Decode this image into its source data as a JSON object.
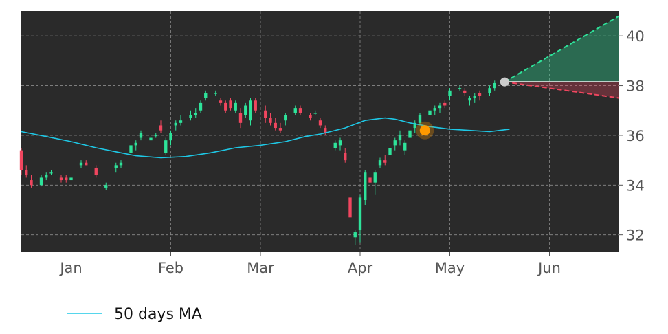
{
  "chart_data": {
    "type": "candlestick",
    "x_ticks": [
      "Jan",
      "Feb",
      "Mar",
      "Apr",
      "May",
      "Jun"
    ],
    "y_ticks": [
      32,
      34,
      36,
      38,
      40
    ],
    "ylim": [
      31.3,
      41.0
    ],
    "grid": true,
    "legend": {
      "placement": "bottom-left",
      "entries": [
        {
          "name": "50 days MA",
          "color": "#1ec8e6"
        }
      ]
    },
    "colors": {
      "up": "#2ee39a",
      "down": "#f0465f",
      "ma": "#1ec8e6",
      "background": "#2a2a2a",
      "grid": "#8a8a8a"
    },
    "ma_50": [
      [
        0,
        36.15
      ],
      [
        5,
        35.95
      ],
      [
        10,
        35.75
      ],
      [
        15,
        35.5
      ],
      [
        20,
        35.3
      ],
      [
        23,
        35.18
      ],
      [
        28,
        35.1
      ],
      [
        33,
        35.15
      ],
      [
        38,
        35.3
      ],
      [
        43,
        35.5
      ],
      [
        48,
        35.6
      ],
      [
        53,
        35.75
      ],
      [
        57,
        35.95
      ],
      [
        60,
        36.05
      ],
      [
        65,
        36.3
      ],
      [
        69,
        36.6
      ],
      [
        73,
        36.7
      ],
      [
        75,
        36.65
      ],
      [
        78,
        36.5
      ],
      [
        82,
        36.35
      ],
      [
        86,
        36.25
      ],
      [
        90,
        36.2
      ],
      [
        94,
        36.15
      ],
      [
        96,
        36.2
      ],
      [
        98,
        36.25
      ]
    ],
    "candles": [
      [
        0,
        35.4,
        35.5,
        34.4,
        34.6
      ],
      [
        1,
        34.6,
        34.8,
        34.3,
        34.4
      ],
      [
        2,
        34.2,
        34.4,
        33.9,
        34.0
      ],
      [
        4,
        34.0,
        34.4,
        33.95,
        34.3
      ],
      [
        5,
        34.3,
        34.5,
        34.2,
        34.4
      ],
      [
        6,
        34.5,
        34.6,
        34.4,
        34.5
      ],
      [
        8,
        34.3,
        34.4,
        34.1,
        34.2
      ],
      [
        9,
        34.3,
        34.4,
        34.1,
        34.2
      ],
      [
        10,
        34.2,
        34.4,
        34.1,
        34.3
      ],
      [
        12,
        34.8,
        35.0,
        34.7,
        34.9
      ],
      [
        13,
        34.9,
        35.0,
        34.8,
        34.8
      ],
      [
        15,
        34.7,
        34.8,
        34.3,
        34.4
      ],
      [
        17,
        33.9,
        34.1,
        33.8,
        34.0
      ],
      [
        19,
        34.7,
        34.9,
        34.5,
        34.8
      ],
      [
        20,
        34.8,
        35.0,
        34.7,
        34.9
      ],
      [
        22,
        35.3,
        35.7,
        35.2,
        35.6
      ],
      [
        23,
        35.6,
        35.8,
        35.4,
        35.7
      ],
      [
        24,
        35.9,
        36.2,
        35.8,
        36.1
      ],
      [
        26,
        35.8,
        36.1,
        35.7,
        35.9
      ],
      [
        27,
        36.0,
        36.1,
        35.9,
        36.0
      ],
      [
        28,
        36.4,
        36.6,
        36.1,
        36.2
      ],
      [
        29,
        35.3,
        35.9,
        35.2,
        35.8
      ],
      [
        30,
        35.8,
        36.2,
        35.6,
        36.1
      ],
      [
        31,
        36.4,
        36.6,
        36.2,
        36.5
      ],
      [
        32,
        36.5,
        36.8,
        36.4,
        36.6
      ],
      [
        34,
        36.7,
        37.0,
        36.6,
        36.8
      ],
      [
        35,
        36.8,
        37.1,
        36.7,
        36.9
      ],
      [
        36,
        37.0,
        37.4,
        36.9,
        37.3
      ],
      [
        37,
        37.5,
        37.8,
        37.4,
        37.7
      ],
      [
        39,
        37.7,
        37.8,
        37.6,
        37.7
      ],
      [
        40,
        37.4,
        37.5,
        37.2,
        37.3
      ],
      [
        41,
        37.3,
        37.4,
        36.9,
        37.0
      ],
      [
        42,
        37.4,
        37.5,
        37.0,
        37.1
      ],
      [
        43,
        37.0,
        37.4,
        36.9,
        37.3
      ],
      [
        44,
        36.9,
        37.1,
        36.3,
        36.5
      ],
      [
        45,
        36.8,
        37.3,
        36.7,
        37.2
      ],
      [
        46,
        36.6,
        37.5,
        36.4,
        37.4
      ],
      [
        47,
        37.4,
        37.5,
        36.9,
        37.0
      ],
      [
        49,
        37.0,
        37.2,
        36.5,
        36.7
      ],
      [
        50,
        36.7,
        36.9,
        36.4,
        36.5
      ],
      [
        51,
        36.5,
        36.7,
        36.2,
        36.3
      ],
      [
        52,
        36.3,
        36.5,
        36.1,
        36.2
      ],
      [
        53,
        36.6,
        36.9,
        36.4,
        36.8
      ],
      [
        55,
        36.9,
        37.2,
        36.8,
        37.1
      ],
      [
        56,
        37.1,
        37.2,
        36.8,
        36.9
      ],
      [
        58,
        36.8,
        36.9,
        36.6,
        36.7
      ],
      [
        59,
        36.9,
        37.0,
        36.8,
        36.9
      ],
      [
        60,
        36.6,
        36.7,
        36.3,
        36.4
      ],
      [
        61,
        36.3,
        36.4,
        36.0,
        36.1
      ],
      [
        63,
        35.5,
        35.8,
        35.4,
        35.7
      ],
      [
        64,
        35.6,
        35.9,
        35.4,
        35.8
      ],
      [
        65,
        35.3,
        35.5,
        34.9,
        35.0
      ],
      [
        66,
        33.5,
        33.6,
        32.6,
        32.7
      ],
      [
        67,
        31.9,
        32.2,
        31.6,
        32.1
      ],
      [
        68,
        32.2,
        33.6,
        31.7,
        33.5
      ],
      [
        69,
        33.4,
        34.6,
        33.2,
        34.5
      ],
      [
        70,
        34.3,
        34.6,
        33.9,
        34.1
      ],
      [
        71,
        34.1,
        34.6,
        33.6,
        34.5
      ],
      [
        72,
        34.8,
        35.1,
        34.7,
        35.0
      ],
      [
        73,
        35.0,
        35.2,
        34.8,
        34.9
      ],
      [
        74,
        35.2,
        35.6,
        35.0,
        35.5
      ],
      [
        75,
        35.6,
        35.9,
        35.4,
        35.8
      ],
      [
        76,
        35.8,
        36.2,
        35.6,
        36.0
      ],
      [
        77,
        35.4,
        35.8,
        35.2,
        35.7
      ],
      [
        78,
        35.9,
        36.3,
        35.7,
        36.2
      ],
      [
        79,
        36.3,
        36.6,
        36.1,
        36.5
      ],
      [
        80,
        36.5,
        36.9,
        36.4,
        36.8
      ],
      [
        82,
        36.8,
        37.1,
        36.6,
        37.0
      ],
      [
        83,
        37.0,
        37.2,
        36.8,
        37.1
      ],
      [
        84,
        37.1,
        37.3,
        36.9,
        37.2
      ],
      [
        85,
        37.3,
        37.4,
        37.1,
        37.2
      ],
      [
        86,
        37.6,
        37.9,
        37.4,
        37.8
      ],
      [
        88,
        37.9,
        38.0,
        37.8,
        37.9
      ],
      [
        89,
        37.8,
        37.9,
        37.6,
        37.7
      ],
      [
        90,
        37.4,
        37.6,
        37.2,
        37.5
      ],
      [
        91,
        37.5,
        37.7,
        37.3,
        37.6
      ],
      [
        92,
        37.7,
        37.8,
        37.4,
        37.6
      ],
      [
        94,
        37.7,
        38.0,
        37.6,
        37.9
      ],
      [
        95,
        37.9,
        38.2,
        37.8,
        38.1
      ]
    ],
    "highlight_marker": {
      "x": 81,
      "y": 36.2,
      "color": "#ff9900"
    },
    "last_point": {
      "x": 97,
      "y": 38.15,
      "color": "#cccccc"
    },
    "projection": {
      "start": [
        97,
        38.15
      ],
      "end_x": 120,
      "upper": 40.8,
      "lower": 37.5,
      "flat": 38.15,
      "up_color": "#2ee39a",
      "down_color": "#f0465f"
    }
  }
}
